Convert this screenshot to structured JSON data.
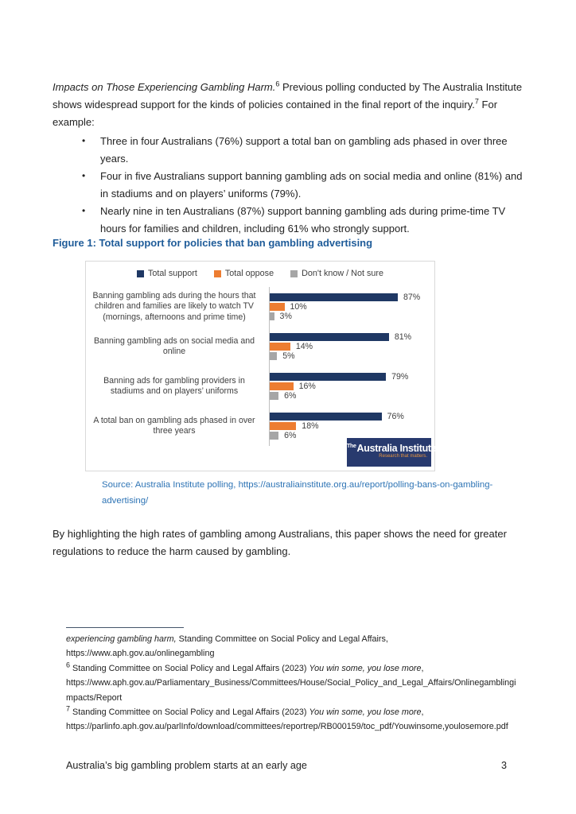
{
  "theme": {
    "caption_blue": "#1F5C99",
    "source_blue": "#2E74B5",
    "navy": "#1F3864",
    "orange": "#ED7D31",
    "gray": "#A6A6A6",
    "logo_navy": "#283A6E",
    "logo_tagline_orange": "#E8953F"
  },
  "intro": {
    "lead_italic": "Impacts on Those Experiencing Gambling Harm.",
    "sup1": "6",
    "text1": " Previous polling conducted by The Australia Institute shows widespread support for the kinds of policies contained in the final report of the inquiry.",
    "sup2": "7",
    "text2": " For example:"
  },
  "bullet_glyph": "•",
  "bullets": [
    "Three in four Australians (76%) support a total ban on gambling ads phased in over three years.",
    "Four in five Australians support banning gambling ads on social media and online (81%) and in stadiums and on players’ uniforms (79%).",
    "Nearly nine in ten Australians (87%) support banning gambling ads during prime-time TV hours for families and children, including 61% who strongly support."
  ],
  "figure": {
    "caption": "Figure 1: Total support for policies that ban gambling advertising",
    "source_line1": "Source: Australia Institute polling, https://australiainstitute.org.au/report/polling-bans-on-gambling-",
    "source_line2": "advertising/",
    "logo": {
      "prefix": "The",
      "name": "Australia Institute",
      "tagline": "Research that matters."
    }
  },
  "chart_data": {
    "type": "bar",
    "orientation": "horizontal",
    "title": "Figure 1: Total support for policies that ban gambling advertising",
    "legend_position": "top",
    "grid": false,
    "value_suffix": "%",
    "xlim": [
      0,
      100
    ],
    "categories": [
      "Banning gambling ads during the hours that children and families are likely to watch TV (mornings, afternoons and prime time)",
      "Banning gambling ads on social media and online",
      "Banning ads for gambling providers in stadiums and on players’ uniforms",
      "A total ban on gambling ads phased in over three years"
    ],
    "series": [
      {
        "name": "Total support",
        "color": "#1F3864",
        "values": [
          87,
          81,
          79,
          76
        ]
      },
      {
        "name": "Total oppose",
        "color": "#ED7D31",
        "values": [
          10,
          14,
          16,
          18
        ]
      },
      {
        "name": "Don't know / Not sure",
        "color": "#A6A6A6",
        "values": [
          3,
          5,
          6,
          6
        ]
      }
    ]
  },
  "closing": "By highlighting the high rates of gambling among Australians, this paper shows the need for greater regulations to reduce the harm caused by gambling.",
  "footnotes": {
    "continuation": {
      "italic": "experiencing gambling harm,",
      "rest": " Standing Committee on Social Policy and Legal Affairs,",
      "url": "https://www.aph.gov.au/onlinegambling"
    },
    "fn6": {
      "marker": "6",
      "text": " Standing Committee on Social Policy and Legal Affairs (2023) ",
      "italic": "You win some, you lose more",
      "after": ",",
      "url": "https://www.aph.gov.au/Parliamentary_Business/Committees/House/Social_Policy_and_Legal_Affairs/Onlinegamblingimpacts/Report"
    },
    "fn7": {
      "marker": "7",
      "text": " Standing Committee on Social Policy and Legal Affairs (2023) ",
      "italic": "You win some, you lose more",
      "after": ",",
      "url": "https://parlinfo.aph.gov.au/parlInfo/download/committees/reportrep/RB000159/toc_pdf/Youwinsome,youlosemore.pdf"
    }
  },
  "footer": {
    "title": "Australia’s big gambling problem starts at an early age",
    "page_number": "3"
  }
}
